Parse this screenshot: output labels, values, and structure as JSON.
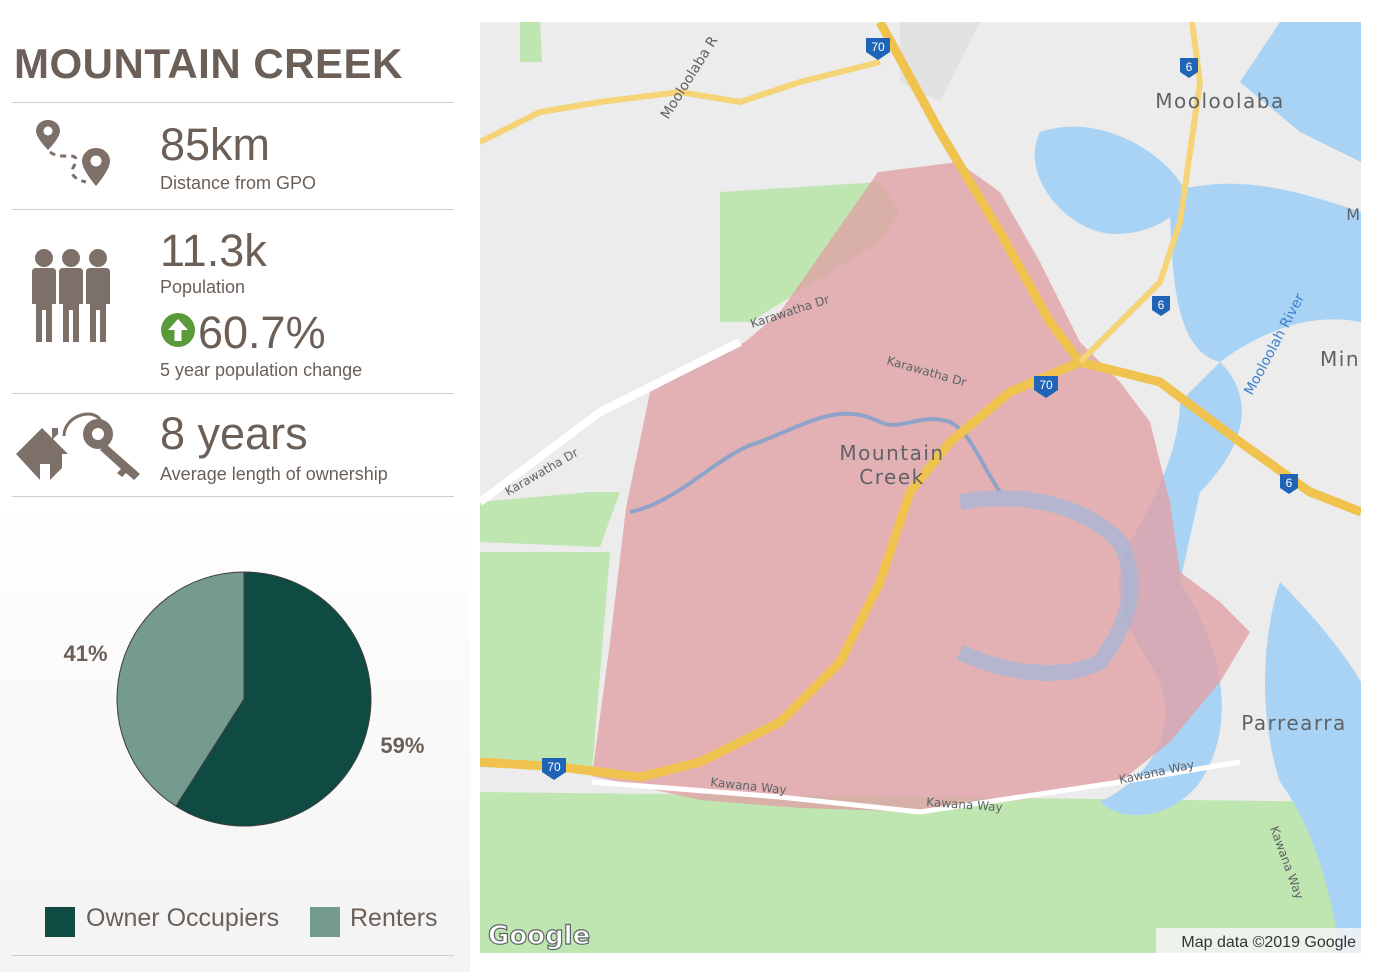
{
  "suburb": {
    "name": "MOUNTAIN CREEK"
  },
  "stats": {
    "distance": {
      "value": "85km",
      "label": "Distance from GPO",
      "icon": "route-pin-icon"
    },
    "population": {
      "value": "11.3k",
      "label": "Population",
      "icon": "people-icon"
    },
    "population_change": {
      "value": "60.7%",
      "label": "5 year population change",
      "direction": "up",
      "icon": "up-arrow-circle-icon",
      "color": "#5a9a3a"
    },
    "ownership": {
      "value": "8 years",
      "label": "Average length of ownership",
      "icon": "house-keys-icon"
    }
  },
  "chart_data": {
    "type": "pie",
    "series": [
      {
        "name": "Owner Occupiers",
        "value": 59,
        "label": "59%",
        "color": "#0f4a43"
      },
      {
        "name": "Renters",
        "value": 41,
        "label": "41%",
        "color": "#759a8f"
      }
    ],
    "legend_position": "bottom"
  },
  "legend": [
    {
      "label": "Owner Occupiers",
      "color": "#0f4a43"
    },
    {
      "label": "Renters",
      "color": "#759a8f"
    }
  ],
  "map": {
    "highlighted_area": "Mountain Creek",
    "highlight_color": "#e0a0a4",
    "labels": {
      "suburb_line1": "Mountain",
      "suburb_line2": "Creek",
      "mooloolaba": "Mooloolaba",
      "parrearra": "Parrearra",
      "min": "Min",
      "m": "M",
      "mooloolah_river": "Mooloolah River",
      "mooloolaba_rd": "Mooloolaba R",
      "karawatha_dr_1": "Karawatha Dr",
      "karawatha_dr_2": "Karawatha Dr",
      "karawatha_dr_3": "Karawatha Dr",
      "kawana_way_1": "Kawana Way",
      "kawana_way_2": "Kawana Way",
      "kawana_way_3": "Kawana Way",
      "kawana_way_4": "Kawana Way"
    },
    "route_shields": [
      "70",
      "70",
      "70",
      "6",
      "6",
      "6"
    ],
    "google_logo": "Google",
    "attribution": "Map data ©2019 Google"
  }
}
